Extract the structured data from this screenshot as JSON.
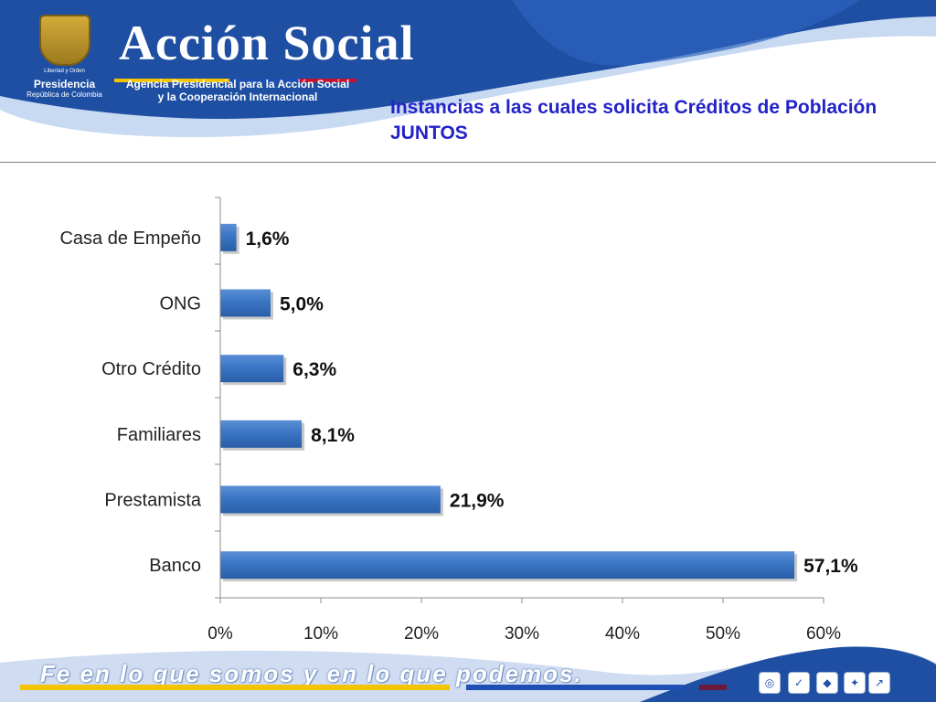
{
  "header": {
    "brand_name": "Acción Social",
    "agency_line1": "Agencia Presidencial para la Acción Social",
    "agency_line2": "y la Cooperación Internacional",
    "coat_motto": "Libertad y Orden",
    "presidencia": "Presidencia",
    "republica": "República de Colombia"
  },
  "slide": {
    "title": "Instancias a las cuales solicita Créditos de Población JUNTOS"
  },
  "footer": {
    "slogan": "Fe en lo que somos y en lo que podemos."
  },
  "colors": {
    "header_blue": "#1e4fa3",
    "title_blue": "#2323c8",
    "bar_blue": "#3a75c4",
    "stripe_yellow": "#f5c400",
    "stripe_blue": "#1f4fb4",
    "stripe_red": "#c8102e"
  },
  "chart_data": {
    "type": "bar",
    "orientation": "horizontal",
    "categories": [
      "Casa de Empeño",
      "ONG",
      "Otro Crédito",
      "Familiares",
      "Prestamista",
      "Banco"
    ],
    "values": [
      1.6,
      5.0,
      6.3,
      8.1,
      21.9,
      57.1
    ],
    "value_labels": [
      "1,6%",
      "5,0%",
      "6,3%",
      "8,1%",
      "21,9%",
      "57,1%"
    ],
    "x_ticks": [
      "0%",
      "10%",
      "20%",
      "30%",
      "40%",
      "50%",
      "60%"
    ],
    "xlim": [
      0,
      60
    ],
    "grid": false,
    "legend": "none"
  }
}
